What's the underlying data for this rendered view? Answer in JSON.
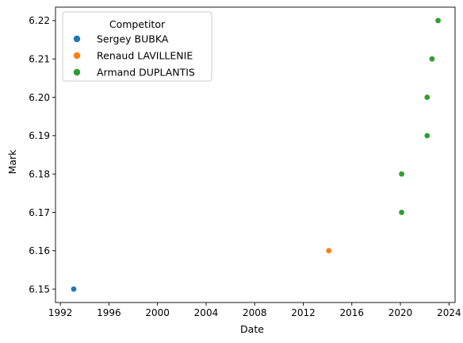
{
  "chart_data": {
    "type": "scatter",
    "title": "",
    "xlabel": "Date",
    "ylabel": "Mark",
    "xlim": [
      1991.6,
      2024.5
    ],
    "ylim": [
      6.1465,
      6.2235
    ],
    "x_ticks": [
      "1992",
      "1996",
      "2000",
      "2004",
      "2008",
      "2012",
      "2016",
      "2020",
      "2024"
    ],
    "y_ticks": [
      "6.15",
      "6.16",
      "6.17",
      "6.18",
      "6.19",
      "6.20",
      "6.21",
      "6.22"
    ],
    "grid": false,
    "legend": {
      "title": "Competitor",
      "placement": "upper-left"
    },
    "series": [
      {
        "name": "Sergey BUBKA",
        "color": "#1f77b4",
        "points": [
          {
            "x": 1993.1,
            "y": 6.15
          }
        ]
      },
      {
        "name": "Renaud LAVILLENIE",
        "color": "#ff7f0e",
        "points": [
          {
            "x": 2014.1,
            "y": 6.16
          }
        ]
      },
      {
        "name": "Armand DUPLANTIS",
        "color": "#2ca02c",
        "points": [
          {
            "x": 2020.1,
            "y": 6.17
          },
          {
            "x": 2020.1,
            "y": 6.18
          },
          {
            "x": 2022.2,
            "y": 6.19
          },
          {
            "x": 2022.2,
            "y": 6.2
          },
          {
            "x": 2022.6,
            "y": 6.21
          },
          {
            "x": 2023.1,
            "y": 6.22
          }
        ]
      }
    ]
  }
}
